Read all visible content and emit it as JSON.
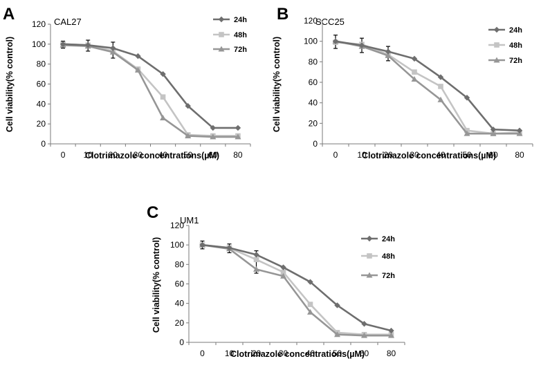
{
  "colors": {
    "24h": "#6e6e6e",
    "48h": "#c4c4c4",
    "72h": "#969696"
  },
  "chart_data": [
    {
      "type": "line",
      "panel": "A",
      "title": "CAL27",
      "xlabel": "Clotrimazole concentrations(µM)",
      "ylabel": "Cell viability(% control)",
      "categories": [
        "0",
        "10",
        "20",
        "30",
        "40",
        "50",
        "60",
        "80"
      ],
      "ylim": [
        0,
        120
      ],
      "yticks": [
        "0",
        "20",
        "40",
        "60",
        "80",
        "100",
        "120"
      ],
      "legend_position": "top-right",
      "series": [
        {
          "name": "24h",
          "marker": "diamond",
          "values": [
            100,
            99,
            96,
            88,
            70,
            38,
            16,
            16
          ]
        },
        {
          "name": "48h",
          "marker": "square",
          "values": [
            100,
            99,
            93,
            75,
            47,
            9,
            8,
            8
          ]
        },
        {
          "name": "72h",
          "marker": "triangle",
          "values": [
            99,
            98,
            92,
            74,
            26,
            8,
            7,
            7
          ]
        }
      ],
      "error": [
        3,
        5,
        6,
        2,
        2,
        2,
        2,
        2
      ]
    },
    {
      "type": "line",
      "panel": "B",
      "title": "SCC25",
      "xlabel": "Clotrimazole concentrations(µM)",
      "ylabel": "Cell viability(% control)",
      "categories": [
        "0",
        "10",
        "20",
        "30",
        "40",
        "50",
        "60",
        "80"
      ],
      "ylim": [
        0,
        120
      ],
      "yticks": [
        "0",
        "20",
        "40",
        "60",
        "80",
        "100",
        "120"
      ],
      "legend_position": "top-right",
      "series": [
        {
          "name": "24h",
          "marker": "diamond",
          "values": [
            100,
            96,
            90,
            83,
            65,
            45,
            14,
            13
          ]
        },
        {
          "name": "48h",
          "marker": "square",
          "values": [
            99,
            97,
            87,
            70,
            56,
            13,
            10,
            11
          ]
        },
        {
          "name": "72h",
          "marker": "triangle",
          "values": [
            100,
            95,
            86,
            63,
            43,
            10,
            10,
            10
          ]
        }
      ],
      "error": [
        6,
        6,
        5,
        2,
        3,
        2,
        2,
        2
      ]
    },
    {
      "type": "line",
      "panel": "C",
      "title": "UM1",
      "xlabel": "Clotrimazole concentrations(µM)",
      "ylabel": "Cell viability(% control)",
      "categories": [
        "0",
        "10",
        "20",
        "30",
        "40",
        "50",
        "60",
        "80"
      ],
      "ylim": [
        0,
        120
      ],
      "yticks": [
        "0",
        "20",
        "40",
        "60",
        "80",
        "100",
        "120"
      ],
      "legend_position": "top-right",
      "series": [
        {
          "name": "24h",
          "marker": "diamond",
          "values": [
            100,
            97,
            90,
            77,
            62,
            38,
            19,
            12
          ]
        },
        {
          "name": "48h",
          "marker": "square",
          "values": [
            100,
            97,
            85,
            72,
            39,
            10,
            8,
            8
          ]
        },
        {
          "name": "72h",
          "marker": "triangle",
          "values": [
            100,
            96,
            75,
            68,
            31,
            8,
            7,
            7
          ]
        }
      ],
      "error": [
        4,
        4,
        4,
        2,
        2,
        2,
        2,
        2
      ]
    }
  ]
}
